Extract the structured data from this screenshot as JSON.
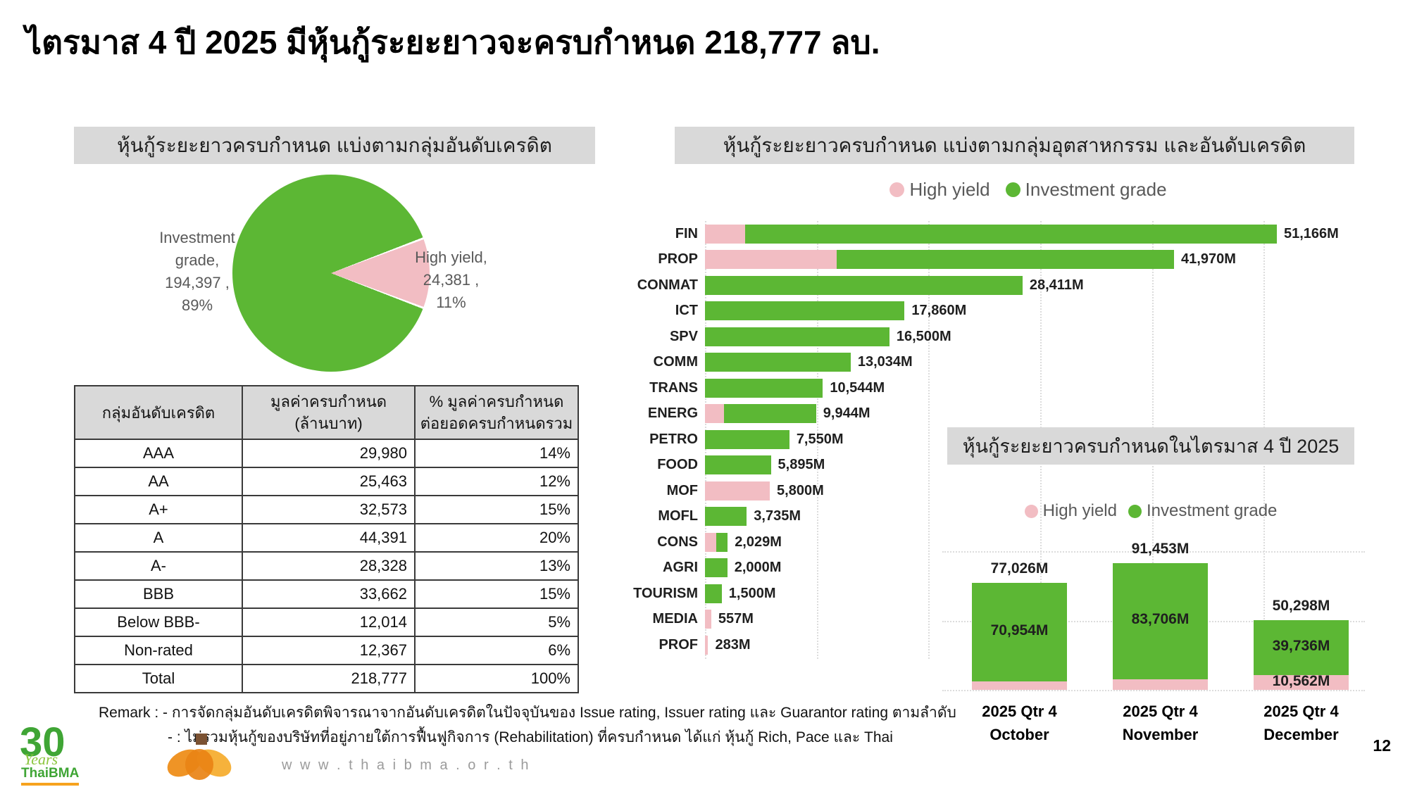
{
  "page": {
    "title": "ไตรมาส 4 ปี 2025 มีหุ้นกู้ระยะยาวจะครบกำหนด 218,777 ลบ.",
    "page_number": "12",
    "website": "w w w . t h a i b m a . o r . t h",
    "logo": {
      "number": "30",
      "years": "Years",
      "brand": "ThaiBMA"
    }
  },
  "colors": {
    "green": "#5cb734",
    "pink": "#f2bdc3",
    "header_bg": "#d9d9d9"
  },
  "panels": {
    "credit": {
      "header": "หุ้นกู้ระยะยาวครบกำหนด แบ่งตามกลุ่มอันดับเครดิต",
      "callout_investment": "Investment\ngrade,\n194,397 ,\n89%",
      "callout_high_yield": "High yield,\n24,381 ,\n11%"
    },
    "industry": {
      "header": "หุ้นกู้ระยะยาวครบกำหนด แบ่งตามกลุ่มอุตสาหกรรม และอันดับเครดิต",
      "legend": [
        {
          "label": "High yield"
        },
        {
          "label": "Investment grade"
        }
      ]
    },
    "quarter": {
      "header": "หุ้นกู้ระยะยาวครบกำหนดในไตรมาส 4 ปี 2025",
      "legend": [
        {
          "label": "High yield"
        },
        {
          "label": "Investment grade"
        }
      ]
    }
  },
  "table": {
    "headers": [
      "กลุ่มอันดับเครดิต",
      "มูลค่าครบกำหนด\n(ล้านบาท)",
      "% มูลค่าครบกำหนด\nต่อยอดครบกำหนดรวม"
    ],
    "rows": [
      [
        "AAA",
        "29,980",
        "14%"
      ],
      [
        "AA",
        "25,463",
        "12%"
      ],
      [
        "A+",
        "32,573",
        "15%"
      ],
      [
        "A",
        "44,391",
        "20%"
      ],
      [
        "A-",
        "28,328",
        "13%"
      ],
      [
        "BBB",
        "33,662",
        "15%"
      ],
      [
        "Below BBB-",
        "12,014",
        "5%"
      ],
      [
        "Non-rated",
        "12,367",
        "6%"
      ],
      [
        "Total",
        "218,777",
        "100%"
      ]
    ]
  },
  "remark": {
    "line1": "Remark : - การจัดกลุ่มอันดับเครดิตพิจารณาจากอันดับเครดิตในปัจจุบันของ Issue rating, Issuer rating และ Guarantor rating ตามลำดับ",
    "line2": "- : ไม่รวมหุ้นกู้ของบริษัทที่อยู่ภายใต้การฟื้นฟูกิจการ (Rehabilitation) ที่ครบกำหนด ได้แก่ หุ้นกู้ Rich, Pace และ Thai"
  },
  "chart_data": [
    {
      "type": "pie",
      "title": "หุ้นกู้ระยะยาวครบกำหนด แบ่งตามกลุ่มอันดับเครดิต",
      "labels": [
        "Investment grade",
        "High yield"
      ],
      "values": [
        194397,
        24381
      ],
      "percent_labels": [
        "89%",
        "11%"
      ],
      "colors": [
        "#5cb734",
        "#f2bdc3"
      ],
      "legend_position": "callouts"
    },
    {
      "type": "bar",
      "orientation": "horizontal",
      "title": "หุ้นกู้ระยะยาวครบกำหนด แบ่งตามกลุ่มอุตสาหกรรม และอันดับเครดิต",
      "legend": [
        "High yield",
        "Investment grade"
      ],
      "categories": [
        "FIN",
        "PROP",
        "CONMAT",
        "ICT",
        "SPV",
        "COMM",
        "TRANS",
        "ENERG",
        "PETRO",
        "FOOD",
        "MOF",
        "MOFL",
        "CONS",
        "AGRI",
        "TOURISM",
        "MEDIA",
        "PROF"
      ],
      "totals": [
        51166,
        41970,
        28411,
        17860,
        16500,
        13034,
        10544,
        9944,
        7550,
        5895,
        5800,
        3735,
        2029,
        2000,
        1500,
        557,
        283
      ],
      "high_yield_estimated": [
        3600,
        11800,
        0,
        0,
        0,
        0,
        0,
        1700,
        0,
        0,
        5800,
        0,
        1000,
        0,
        0,
        557,
        283
      ],
      "value_labels": [
        "51,166M",
        "41,970M",
        "28,411M",
        "17,860M",
        "16,500M",
        "13,034M",
        "10,544M",
        "9,944M",
        "7,550M",
        "5,895M",
        "5,800M",
        "3,735M",
        "2,029M",
        "2,000M",
        "1,500M",
        "557M",
        "283M"
      ],
      "xlim": [
        0,
        55000
      ],
      "x_gridline_step": 10000,
      "grid": "dotted-vertical"
    },
    {
      "type": "bar",
      "stacked": true,
      "title": "หุ้นกู้ระยะยาวครบกำหนดในไตรมาส 4 ปี 2025",
      "legend": [
        "High yield",
        "Investment grade"
      ],
      "categories": [
        "2025 Qtr 4\nOctober",
        "2025 Qtr 4\nNovember",
        "2025 Qtr 4\nDecember"
      ],
      "series": [
        {
          "name": "High yield",
          "values": [
            6072,
            7747,
            10562
          ]
        },
        {
          "name": "Investment grade",
          "values": [
            70954,
            83706,
            39736
          ]
        }
      ],
      "totals": [
        77026,
        91453,
        50298
      ],
      "total_labels": [
        "77,026M",
        "91,453M",
        "50,298M"
      ],
      "green_labels": [
        "70,954M",
        "83,706M",
        "39,736M"
      ],
      "pink_labels": [
        "",
        "",
        "10,562M"
      ],
      "ylim": [
        0,
        100000
      ],
      "gridline_step": 50000,
      "grid": "dotted-horizontal"
    }
  ]
}
